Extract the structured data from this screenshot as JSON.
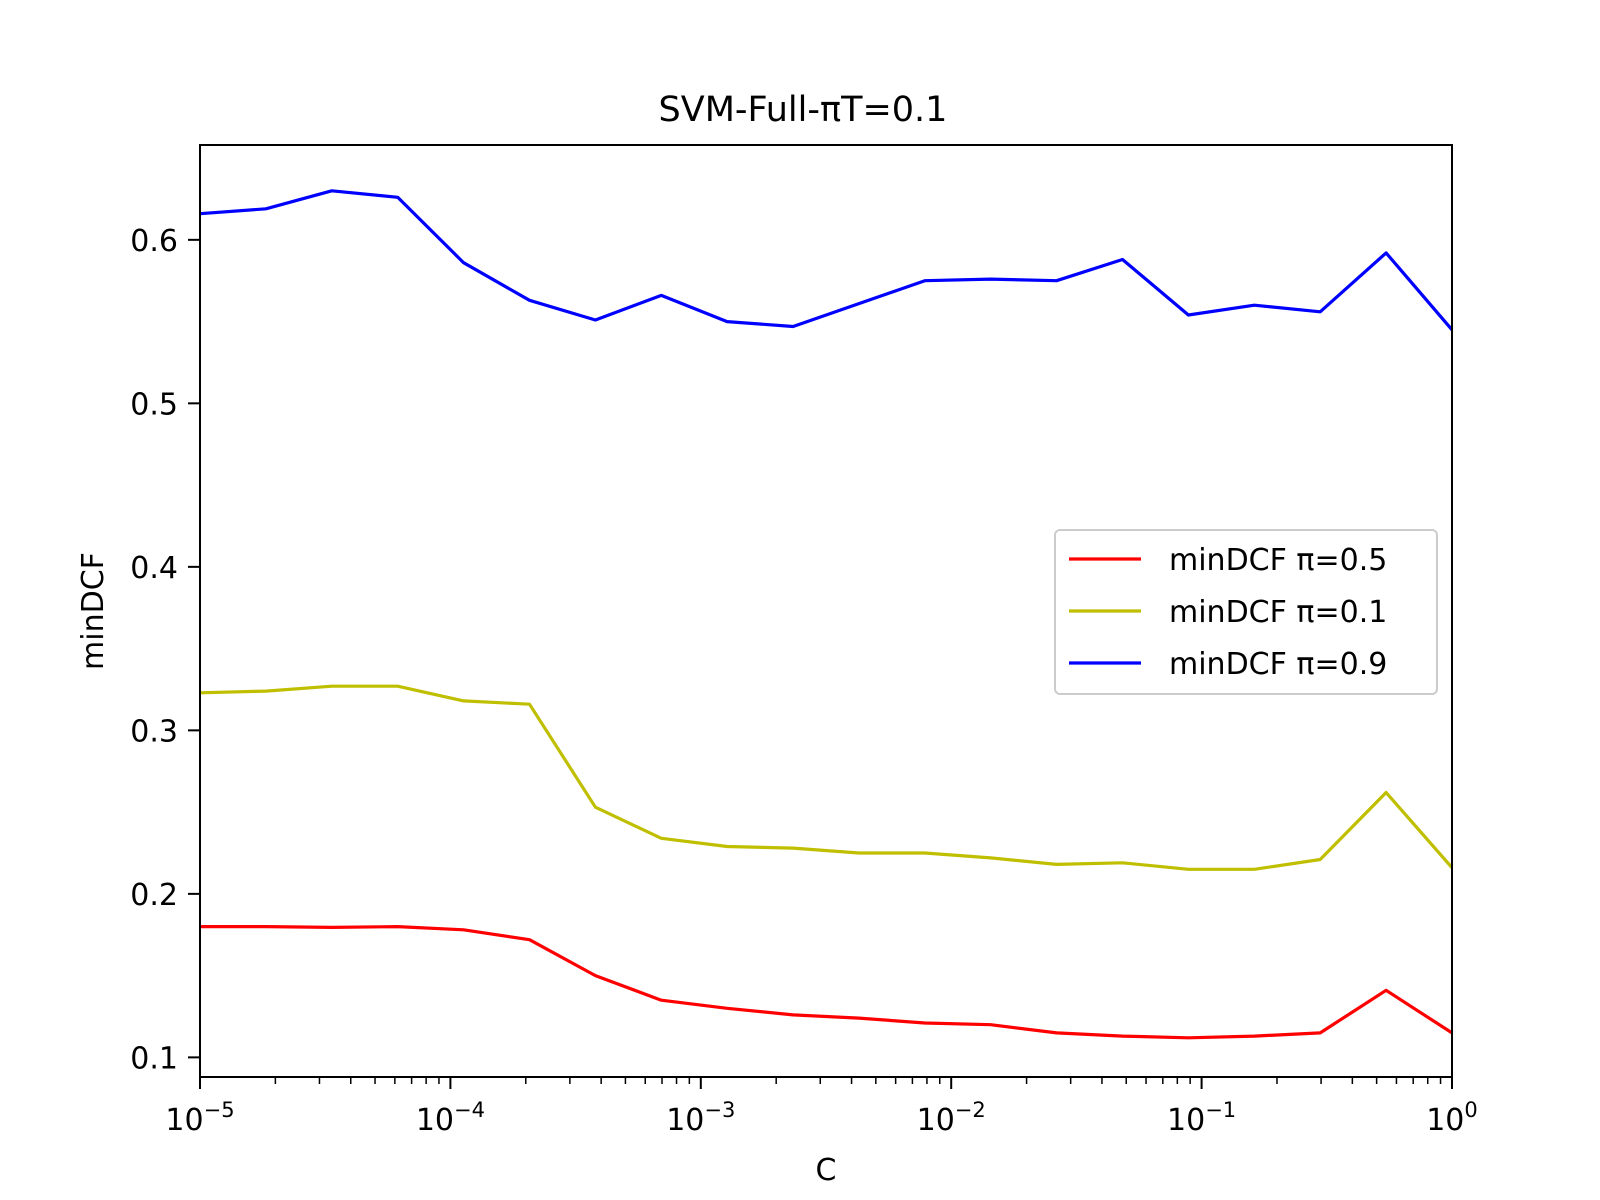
{
  "chart_data": {
    "type": "line",
    "title": "SVM-Full-πT=0.1",
    "xlabel": "C",
    "ylabel": "minDCF",
    "xscale": "log",
    "xlim": [
      1e-05,
      1
    ],
    "ylim": [
      0.088,
      0.658
    ],
    "grid": false,
    "legend_position": "center-right",
    "x": [
      1e-05,
      1.833e-05,
      3.36e-05,
      6.158e-05,
      0.0001129,
      0.0002069,
      0.0003793,
      0.0006952,
      0.001274,
      0.002336,
      0.004281,
      0.007848,
      0.01438,
      0.02637,
      0.04833,
      0.08859,
      0.1624,
      0.2976,
      0.5456,
      1
    ],
    "series": [
      {
        "name": "minDCF π=0.5",
        "color": "#ff0000",
        "values": [
          0.18,
          0.18,
          0.1795,
          0.18,
          0.178,
          0.172,
          0.15,
          0.135,
          0.13,
          0.126,
          0.124,
          0.121,
          0.12,
          0.115,
          0.113,
          0.112,
          0.113,
          0.115,
          0.141,
          0.115
        ]
      },
      {
        "name": "minDCF π=0.1",
        "color": "#bfbf00",
        "values": [
          0.323,
          0.324,
          0.327,
          0.327,
          0.318,
          0.316,
          0.253,
          0.234,
          0.229,
          0.228,
          0.225,
          0.225,
          0.222,
          0.218,
          0.219,
          0.215,
          0.215,
          0.221,
          0.262,
          0.216
        ]
      },
      {
        "name": "minDCF π=0.9",
        "color": "#0000ff",
        "values": [
          0.616,
          0.619,
          0.63,
          0.626,
          0.586,
          0.563,
          0.551,
          0.566,
          0.55,
          0.547,
          0.561,
          0.575,
          0.576,
          0.575,
          0.588,
          0.554,
          0.56,
          0.556,
          0.592,
          0.545
        ]
      }
    ],
    "y_ticks": [
      0.1,
      0.2,
      0.3,
      0.4,
      0.5,
      0.6
    ],
    "y_tick_labels": [
      "0.1",
      "0.2",
      "0.3",
      "0.4",
      "0.5",
      "0.6"
    ],
    "x_tick_bases": [
      "10",
      "10",
      "10",
      "10",
      "10",
      "10"
    ],
    "x_tick_exponents": [
      "−5",
      "−4",
      "−3",
      "−2",
      "−1",
      "0"
    ]
  }
}
